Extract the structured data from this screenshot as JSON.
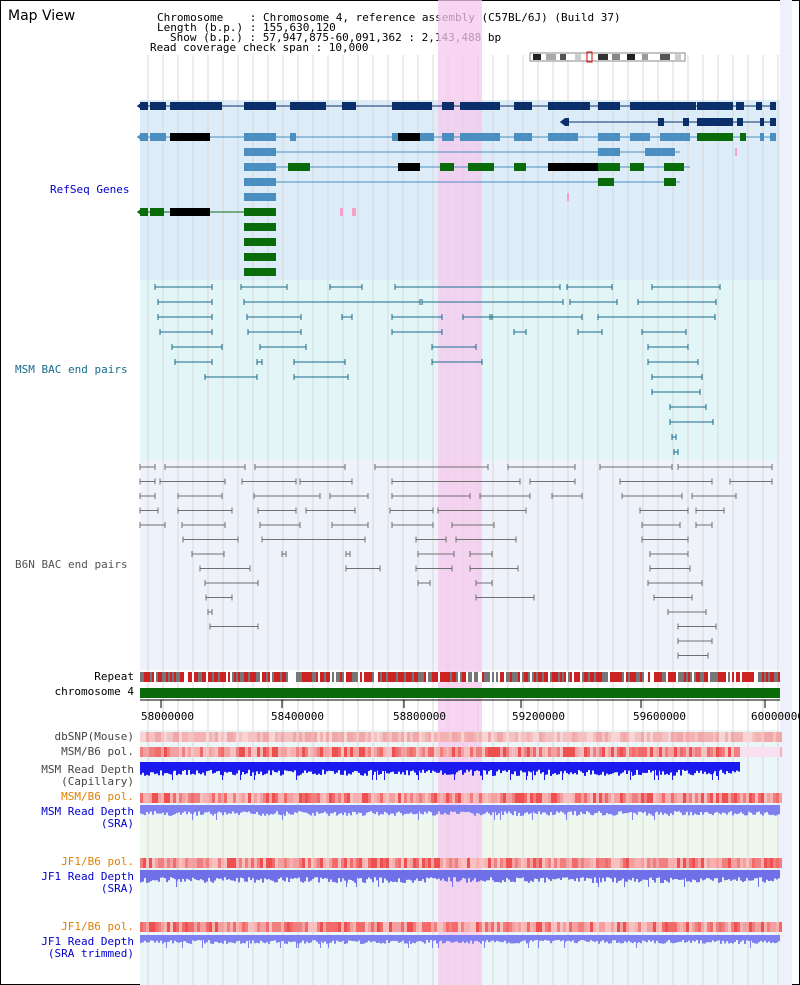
{
  "header": {
    "title": "Map View",
    "chromosome_line": "Chromosome    : Chromosome 4, reference assembly (C57BL/6J) (Build 37)",
    "length_line": "Length (b.p.) : 155,630,120",
    "show_line": "Show (b.p.) : 57,947,875-60,091,362 : 2,143,488 bp",
    "read_span_line": "Read coverage check span : 10,000"
  },
  "tracks": {
    "refseq": {
      "label": "RefSeq Genes",
      "color": "#0000cc"
    },
    "msm_bac": {
      "label": "MSM BAC end pairs",
      "color": "#1a6b8a"
    },
    "b6n_bac": {
      "label": "B6N BAC end pairs",
      "color": "#666666"
    },
    "repeat": {
      "label": "Repeat"
    },
    "chromosome": {
      "label": "chromosome 4"
    },
    "dbsnp": {
      "label": "dbSNP(Mouse)"
    },
    "msm_b6_pol_cap": {
      "label": "MSM/B6 pol."
    },
    "msm_read_depth_cap": {
      "label1": "MSM Read Depth",
      "label2": "(Capillary)"
    },
    "msm_b6_pol_sra": {
      "label": "MSM/B6 pol.",
      "color": "#e08000"
    },
    "msm_read_depth_sra": {
      "label1": "MSM Read Depth",
      "label2": "(SRA)",
      "color": "#0000cc"
    },
    "jf1_b6_pol_sra": {
      "label": "JF1/B6 pol.",
      "color": "#e08000"
    },
    "jf1_read_depth_sra": {
      "label1": "JF1 Read Depth",
      "label2": "(SRA)",
      "color": "#0000cc"
    },
    "jf1_b6_pol_trim": {
      "label": "JF1/B6 pol.",
      "color": "#e08000"
    },
    "jf1_read_depth_trim": {
      "label1": "JF1 Read Depth",
      "label2": "(SRA trimmed)",
      "color": "#0000cc"
    }
  },
  "axis": {
    "ticks": [
      "58000000",
      "58400000",
      "58800000",
      "59200000",
      "59600000",
      "60000000"
    ]
  },
  "colors": {
    "gene_dark": "#0a2f6b",
    "gene_mid": "#4a8fbf",
    "gene_green": "#0a6b0a",
    "highlight": "#f5c8ee",
    "refseq_bg": "#dcecf8",
    "msm_bg": "#e2f6f8",
    "b6n_bg": "#eef2fa",
    "depth_blue": "#1a1aee",
    "depth_light": "#7f7ff0"
  }
}
